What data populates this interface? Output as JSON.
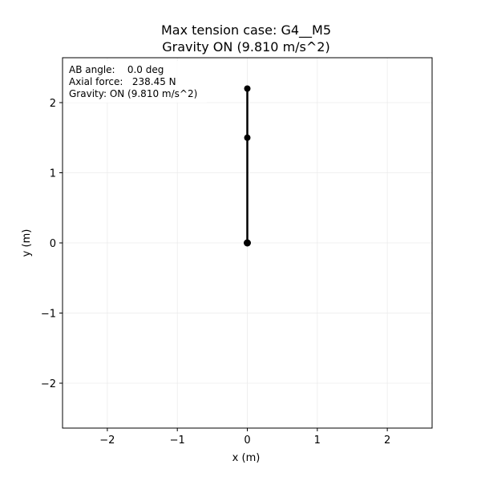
{
  "chart_data": {
    "type": "line",
    "title": "Max tension case: G4__M5",
    "subtitle": "Gravity ON (9.810 m/s^2)",
    "xlabel": "x (m)",
    "ylabel": "y (m)",
    "xlim": [
      -2.64,
      2.64
    ],
    "ylim": [
      -2.64,
      2.64
    ],
    "xticks": [
      -2,
      -1,
      0,
      1,
      2
    ],
    "yticks": [
      -2,
      -1,
      0,
      1,
      2
    ],
    "xtick_labels": [
      "−2",
      "−1",
      "0",
      "1",
      "2"
    ],
    "ytick_labels": [
      "−2",
      "−1",
      "0",
      "1",
      "2"
    ],
    "grid": true,
    "series": [
      {
        "x": [
          0.0,
          0.0,
          0.0
        ],
        "y": [
          0.0,
          1.5,
          2.2
        ]
      }
    ],
    "info_lines": [
      "AB angle:    0.0 deg",
      "Axial force:   238.45 N",
      "Gravity: ON (9.810 m/s^2)"
    ],
    "colors": {
      "line": "#000000",
      "grid": "#ebebeb",
      "frame": "#000000"
    }
  }
}
